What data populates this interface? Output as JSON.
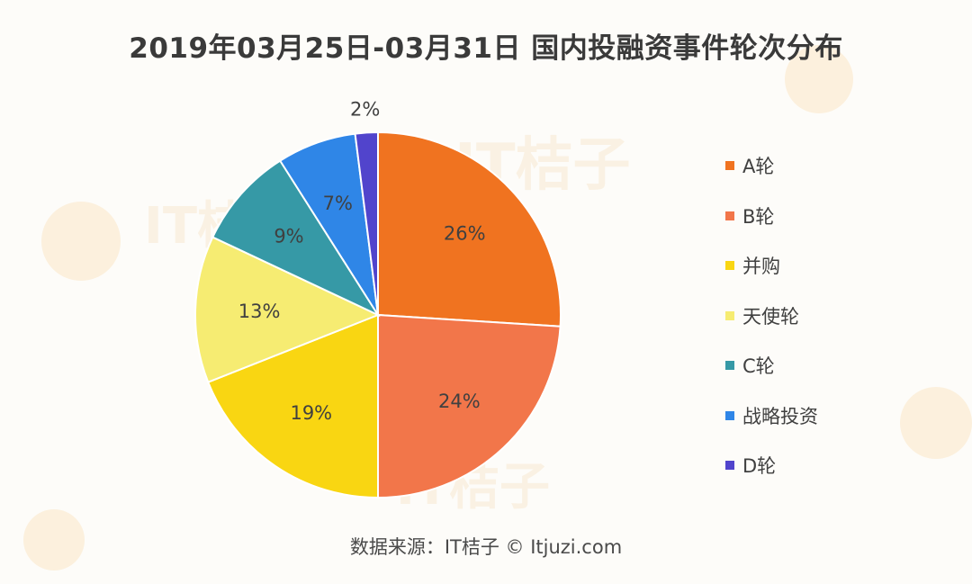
{
  "title": "2019年03月25日-03月31日 国内投融资事件轮次分布",
  "source": "数据来源：IT桔子 © Itjuzi.com",
  "watermark_text": "IT桔子",
  "chart_data": {
    "type": "pie",
    "title": "2019年03月25日-03月31日 国内投融资事件轮次分布",
    "legend_position": "right",
    "slices": [
      {
        "name": "A轮",
        "value": 26,
        "label": "26%",
        "color": "#F07320"
      },
      {
        "name": "B轮",
        "value": 24,
        "label": "24%",
        "color": "#F2764A"
      },
      {
        "name": "并购",
        "value": 19,
        "label": "19%",
        "color": "#F9D612"
      },
      {
        "name": "天使轮",
        "value": 13,
        "label": "13%",
        "color": "#F6EC72"
      },
      {
        "name": "C轮",
        "value": 9,
        "label": "9%",
        "color": "#3699A6"
      },
      {
        "name": "战略投资",
        "value": 7,
        "label": "7%",
        "color": "#2F86E7"
      },
      {
        "name": "D轮",
        "value": 2,
        "label": "2%",
        "color": "#5144CC"
      }
    ]
  }
}
